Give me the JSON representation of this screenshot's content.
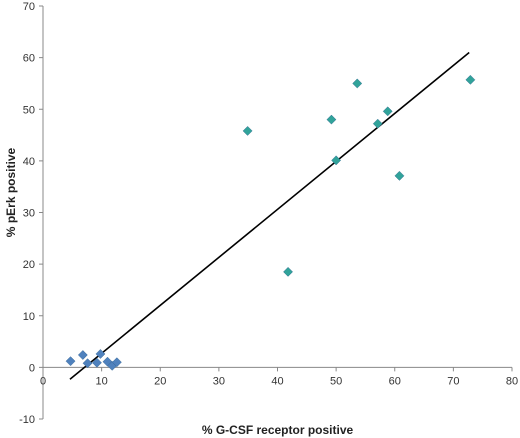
{
  "chart_data": {
    "type": "scatter",
    "title": "",
    "xlabel": "% G-CSF receptor positive",
    "ylabel": "% pErk positive",
    "xlim": [
      0,
      80
    ],
    "ylim": [
      -10,
      70
    ],
    "x_ticks": [
      0,
      10,
      20,
      30,
      40,
      50,
      60,
      70,
      80
    ],
    "y_ticks": [
      -10,
      0,
      10,
      20,
      30,
      40,
      50,
      60,
      70
    ],
    "grid": false,
    "legend": "none",
    "series": [
      {
        "marker": "diamond",
        "color": "#4f81bd",
        "points": [
          {
            "x": 4.7,
            "y": 1.2
          },
          {
            "x": 6.8,
            "y": 2.4
          },
          {
            "x": 7.6,
            "y": 0.8
          },
          {
            "x": 9.2,
            "y": 0.9
          },
          {
            "x": 9.8,
            "y": 2.6
          },
          {
            "x": 11.0,
            "y": 1.1
          },
          {
            "x": 11.8,
            "y": 0.3
          },
          {
            "x": 12.6,
            "y": 1.0
          }
        ]
      },
      {
        "marker": "diamond",
        "color": "#31a39a",
        "points": [
          {
            "x": 34.9,
            "y": 45.8
          },
          {
            "x": 41.8,
            "y": 18.5
          },
          {
            "x": 49.2,
            "y": 48.0
          },
          {
            "x": 50.0,
            "y": 40.1
          },
          {
            "x": 53.6,
            "y": 55.0
          },
          {
            "x": 57.1,
            "y": 47.2
          },
          {
            "x": 58.8,
            "y": 49.6
          },
          {
            "x": 60.8,
            "y": 37.1
          },
          {
            "x": 72.9,
            "y": 55.7
          }
        ]
      }
    ],
    "trendline": {
      "color": "#000000",
      "points": [
        {
          "x": 4.6,
          "y": -2.3
        },
        {
          "x": 72.7,
          "y": 61.0
        }
      ]
    }
  }
}
